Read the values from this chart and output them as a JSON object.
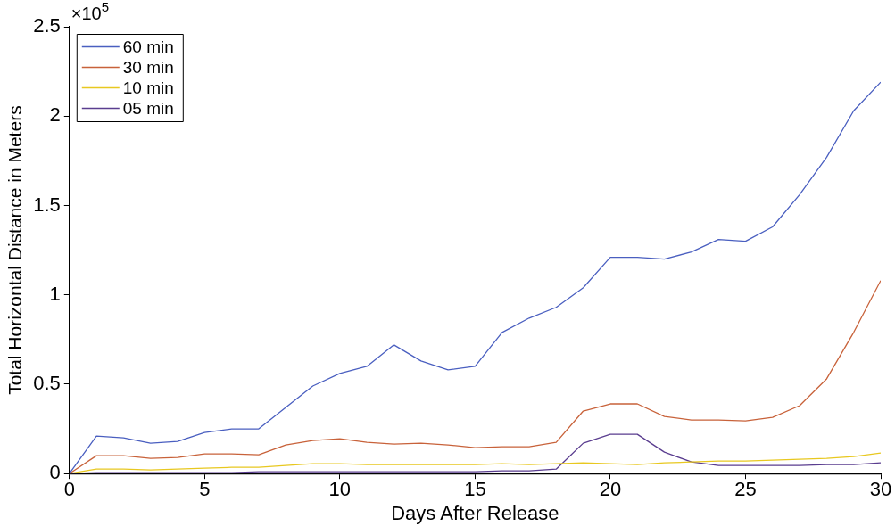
{
  "chart_data": {
    "type": "line",
    "xlabel": "Days After Release",
    "ylabel": "Total Horizontal Distance in Meters",
    "annotations": [
      "×10$^{5}$"
    ],
    "x": [
      0,
      1,
      2,
      3,
      4,
      5,
      6,
      7,
      8,
      9,
      10,
      11,
      12,
      13,
      14,
      15,
      16,
      17,
      18,
      19,
      20,
      21,
      22,
      23,
      24,
      25,
      26,
      27,
      28,
      29,
      30
    ],
    "series": [
      {
        "name": "60 min",
        "color": "#4a5fc0",
        "values": [
          0,
          0.21,
          0.2,
          0.17,
          0.18,
          0.23,
          0.25,
          0.25,
          0.37,
          0.49,
          0.56,
          0.6,
          0.72,
          0.63,
          0.58,
          0.6,
          0.79,
          0.87,
          0.93,
          1.04,
          1.21,
          1.21,
          1.2,
          1.24,
          1.31,
          1.3,
          1.38,
          1.56,
          1.77,
          2.03,
          2.19
        ]
      },
      {
        "name": "30 min",
        "color": "#c8623a",
        "values": [
          0,
          0.1,
          0.1,
          0.085,
          0.09,
          0.11,
          0.11,
          0.105,
          0.16,
          0.185,
          0.195,
          0.175,
          0.165,
          0.17,
          0.16,
          0.145,
          0.15,
          0.15,
          0.175,
          0.35,
          0.39,
          0.39,
          0.32,
          0.3,
          0.3,
          0.295,
          0.315,
          0.38,
          0.53,
          0.79,
          1.08
        ]
      },
      {
        "name": "10 min",
        "color": "#e8c820",
        "values": [
          0,
          0.025,
          0.025,
          0.02,
          0.025,
          0.03,
          0.035,
          0.035,
          0.045,
          0.055,
          0.055,
          0.05,
          0.05,
          0.05,
          0.05,
          0.05,
          0.055,
          0.05,
          0.055,
          0.06,
          0.055,
          0.05,
          0.06,
          0.065,
          0.07,
          0.07,
          0.075,
          0.08,
          0.085,
          0.095,
          0.115
        ]
      },
      {
        "name": "05 min",
        "color": "#5a3d8f",
        "values": [
          0,
          0.005,
          0.005,
          0.005,
          0.005,
          0.005,
          0.005,
          0.01,
          0.01,
          0.01,
          0.01,
          0.01,
          0.01,
          0.01,
          0.01,
          0.01,
          0.015,
          0.015,
          0.025,
          0.17,
          0.22,
          0.22,
          0.12,
          0.065,
          0.045,
          0.045,
          0.045,
          0.045,
          0.05,
          0.05,
          0.06
        ]
      }
    ],
    "xlim": [
      0,
      30
    ],
    "xticks": [
      0,
      5,
      10,
      15,
      20,
      25,
      30
    ],
    "ylim": [
      0,
      2.5
    ],
    "yticks": [
      0,
      0.5,
      1,
      1.5,
      2,
      2.5
    ],
    "grid": false,
    "legend": "top left",
    "marker": "none",
    "line_style": "solid"
  }
}
